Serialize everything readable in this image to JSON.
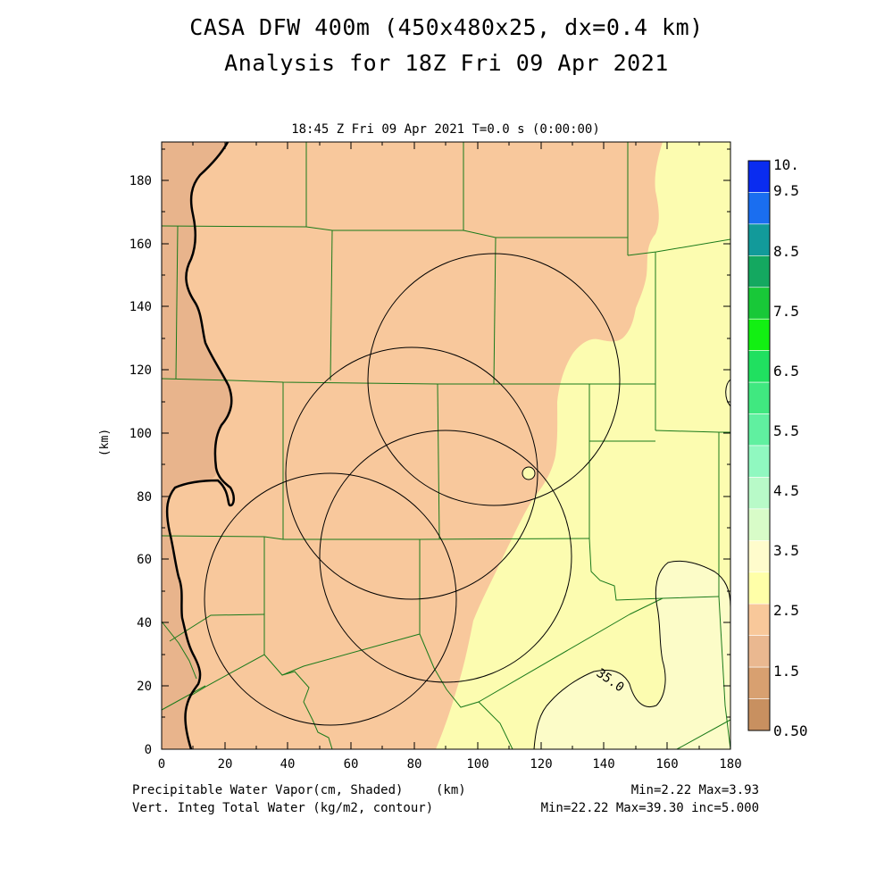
{
  "title": {
    "line1": "CASA DFW 400m (450x480x25, dx=0.4 km)",
    "line2": "Analysis for 18Z Fri 09 Apr 2021"
  },
  "subtitle": "18:45 Z Fri 09 Apr 2021   T=0.0 s (0:00:00)",
  "axes": {
    "ylabel": "(km)",
    "xlabel": "(km)",
    "x_ticks": [
      "0",
      "20",
      "40",
      "60",
      "80",
      "100",
      "120",
      "140",
      "160",
      "180"
    ],
    "y_ticks": [
      "0",
      "20",
      "40",
      "60",
      "80",
      "100",
      "120",
      "140",
      "160",
      "180"
    ]
  },
  "colorbar": {
    "labels": [
      "10.",
      "9.5",
      "8.5",
      "7.5",
      "6.5",
      "5.5",
      "4.5",
      "3.5",
      "2.5",
      "1.5",
      "0.50"
    ],
    "colors": [
      "#0a2cf0",
      "#1a6ef0",
      "#129a9a",
      "#14a860",
      "#18c838",
      "#12f012",
      "#20e060",
      "#40e880",
      "#60f0a0",
      "#90f8c0",
      "#b8fac8",
      "#d8fcc8",
      "#fffccc",
      "#ffffa8",
      "#f8c89a",
      "#eab890",
      "#d8a070",
      "#c89060"
    ]
  },
  "footer": {
    "left1": "Precipitable Water Vapor(cm, Shaded)",
    "left1_unit": "(km)",
    "left2": "Vert. Integ Total Water (kg/m2, contour)",
    "right1": "Min=2.22 Max=3.93",
    "right2": "Min=22.22 Max=39.30 inc=5.000"
  },
  "map": {
    "contour_label": "35.0",
    "region_colors": {
      "lt_2.5": "#e8b48c",
      "2.5_3.0": "#f8c89c",
      "3.0_3.5": "#fcfcb0",
      "3.5_4.0": "#fcfcc8"
    },
    "county_line_color": "#1a7a1a",
    "radar_rings_km": [
      {
        "center": [
          108,
          116
        ],
        "radius": 40
      },
      {
        "center": [
          80,
          88
        ],
        "radius": 40
      },
      {
        "center": [
          90,
          62
        ],
        "radius": 40
      },
      {
        "center": [
          54,
          48
        ],
        "radius": 40
      }
    ]
  }
}
